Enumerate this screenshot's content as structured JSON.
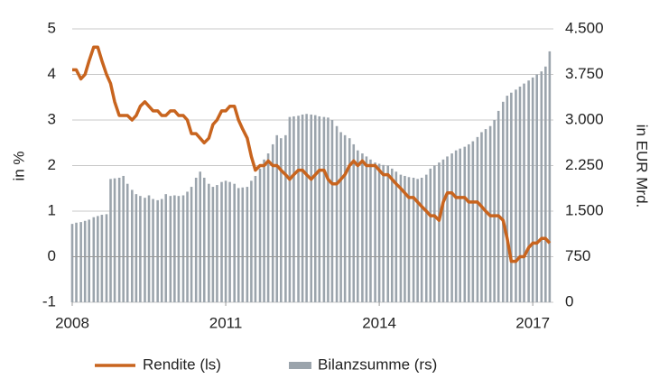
{
  "chart_data": {
    "type": "combo",
    "y_label": "in %",
    "y2_label": "in EUR Mrd.",
    "xlim": [
      2008,
      2017.35
    ],
    "xticks": [
      2008,
      2011,
      2014,
      2017
    ],
    "ylim": [
      -1,
      5
    ],
    "yticks": [
      -1,
      0,
      1,
      2,
      3,
      4,
      5
    ],
    "y2lim": [
      0,
      4500
    ],
    "y2ticks": [
      0,
      750,
      {
        "value": 1500,
        "label": "1.500"
      },
      {
        "value": 2250,
        "label": "2.250"
      },
      {
        "value": 3000,
        "label": "3.000"
      },
      {
        "value": 3750,
        "label": "3.750"
      },
      {
        "value": 4500,
        "label": "4.500"
      }
    ],
    "grid": true,
    "legend": "bottom",
    "x": [
      2008,
      2008.08,
      2008.17,
      2008.25,
      2008.33,
      2008.42,
      2008.5,
      2008.58,
      2008.67,
      2008.75,
      2008.83,
      2008.92,
      2009,
      2009.08,
      2009.17,
      2009.25,
      2009.33,
      2009.42,
      2009.5,
      2009.58,
      2009.67,
      2009.75,
      2009.83,
      2009.92,
      2010,
      2010.08,
      2010.17,
      2010.25,
      2010.33,
      2010.42,
      2010.5,
      2010.58,
      2010.67,
      2010.75,
      2010.83,
      2010.92,
      2011,
      2011.08,
      2011.17,
      2011.25,
      2011.33,
      2011.42,
      2011.5,
      2011.58,
      2011.67,
      2011.75,
      2011.83,
      2011.92,
      2012,
      2012.08,
      2012.17,
      2012.25,
      2012.33,
      2012.42,
      2012.5,
      2012.58,
      2012.67,
      2012.75,
      2012.83,
      2012.92,
      2013,
      2013.08,
      2013.17,
      2013.25,
      2013.33,
      2013.42,
      2013.5,
      2013.58,
      2013.67,
      2013.75,
      2013.83,
      2013.92,
      2014,
      2014.08,
      2014.17,
      2014.25,
      2014.33,
      2014.42,
      2014.5,
      2014.58,
      2014.67,
      2014.75,
      2014.83,
      2014.92,
      2015,
      2015.08,
      2015.17,
      2015.25,
      2015.33,
      2015.42,
      2015.5,
      2015.58,
      2015.67,
      2015.75,
      2015.83,
      2015.92,
      2016,
      2016.08,
      2016.17,
      2016.25,
      2016.33,
      2016.42,
      2016.5,
      2016.58,
      2016.67,
      2016.75,
      2016.83,
      2016.92,
      2017,
      2017.08,
      2017.17,
      2017.25,
      2017.33
    ],
    "series": [
      {
        "name": "Bilanzsumme (rs)",
        "type": "bar",
        "axis": "y2",
        "color": "#9ba4ac",
        "values": [
          1290,
          1310,
          1320,
          1340,
          1360,
          1400,
          1420,
          1440,
          1450,
          2030,
          2040,
          2050,
          2080,
          1950,
          1850,
          1780,
          1750,
          1720,
          1760,
          1700,
          1680,
          1700,
          1780,
          1750,
          1760,
          1750,
          1760,
          1820,
          1900,
          2050,
          2150,
          2050,
          1950,
          1900,
          1930,
          1980,
          2000,
          1980,
          1950,
          1880,
          1890,
          1900,
          2000,
          2080,
          2200,
          2350,
          2450,
          2600,
          2750,
          2700,
          2750,
          3050,
          3060,
          3070,
          3090,
          3100,
          3090,
          3080,
          3060,
          3050,
          3040,
          3000,
          2900,
          2800,
          2750,
          2700,
          2600,
          2500,
          2450,
          2400,
          2350,
          2300,
          2280,
          2260,
          2250,
          2200,
          2150,
          2100,
          2080,
          2060,
          2050,
          2030,
          2050,
          2100,
          2200,
          2250,
          2300,
          2350,
          2400,
          2450,
          2500,
          2530,
          2560,
          2600,
          2650,
          2720,
          2800,
          2850,
          2900,
          3000,
          3150,
          3300,
          3400,
          3450,
          3500,
          3550,
          3600,
          3650,
          3700,
          3750,
          3800,
          3880,
          4130
        ]
      },
      {
        "name": "Rendite (ls)",
        "type": "line",
        "color": "#c8641e",
        "values": [
          4.1,
          4.1,
          3.9,
          4.0,
          4.3,
          4.6,
          4.6,
          4.3,
          4.0,
          3.8,
          3.4,
          3.1,
          3.1,
          3.1,
          3.0,
          3.1,
          3.3,
          3.4,
          3.3,
          3.2,
          3.2,
          3.1,
          3.1,
          3.2,
          3.2,
          3.1,
          3.1,
          3.0,
          2.7,
          2.7,
          2.6,
          2.5,
          2.6,
          2.9,
          3.0,
          3.2,
          3.2,
          3.3,
          3.3,
          3.0,
          2.8,
          2.6,
          2.2,
          1.9,
          2.0,
          2.0,
          2.1,
          2.0,
          2.0,
          1.9,
          1.8,
          1.7,
          1.8,
          1.9,
          1.9,
          1.8,
          1.7,
          1.8,
          1.9,
          1.9,
          1.7,
          1.6,
          1.6,
          1.7,
          1.8,
          2.0,
          2.1,
          2.0,
          2.1,
          2.0,
          2.0,
          2.0,
          1.9,
          1.8,
          1.8,
          1.7,
          1.6,
          1.5,
          1.4,
          1.3,
          1.3,
          1.2,
          1.1,
          1.0,
          0.9,
          0.9,
          0.8,
          1.2,
          1.4,
          1.4,
          1.3,
          1.3,
          1.3,
          1.2,
          1.2,
          1.2,
          1.1,
          1.0,
          0.9,
          0.9,
          0.9,
          0.8,
          0.4,
          -0.1,
          -0.1,
          0.0,
          0.0,
          0.2,
          0.3,
          0.3,
          0.4,
          0.4,
          0.3
        ]
      }
    ]
  }
}
